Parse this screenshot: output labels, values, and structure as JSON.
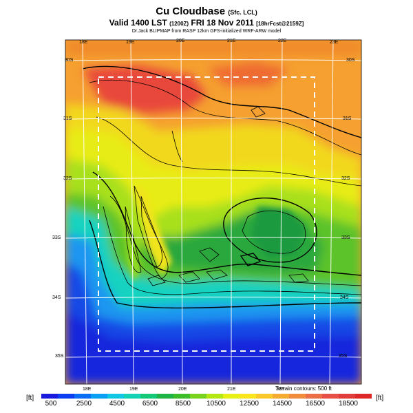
{
  "header": {
    "title": "Cu Cloudbase",
    "title_suffix": "(Sfc. LCL)",
    "valid_line": "Valid 1400 LST",
    "valid_code": "(1200Z)",
    "valid_date": "FRI 18 Nov 2011",
    "forecast_tag": "[18hrFcst@2159Z]",
    "source_line": "Dr.Jack BLIPMAP from RASP 12km GFS-initialized WRF-ARW model"
  },
  "map": {
    "lon_labels_top": [
      "18E",
      "19E",
      "20E",
      "21E",
      "22E",
      "23E"
    ],
    "lon_labels_bottom": [
      "18E",
      "19E",
      "20E",
      "21E",
      "22E"
    ],
    "lat_labels_right": [
      "30S",
      "31S",
      "32S",
      "33S",
      "34S",
      "35S"
    ],
    "lat_labels_left": [
      "30S",
      "31S",
      "32S",
      "33S",
      "34S",
      "35S"
    ],
    "terrain_note": "Terrain contours: 500 ft",
    "inner_box_style": "dashed white"
  },
  "colorbar": {
    "unit_left": "[ft]",
    "unit_right": "[ft]",
    "tick_labels": [
      "500",
      "2500",
      "4500",
      "6500",
      "8500",
      "10500",
      "12500",
      "14500",
      "16500",
      "18500"
    ],
    "colors": [
      "#1a1adc",
      "#0a3ef0",
      "#0a6ef5",
      "#0aa0f5",
      "#10c8e6",
      "#14d2b4",
      "#14c878",
      "#1eb446",
      "#3cbe28",
      "#78d21e",
      "#b4e614",
      "#e6f014",
      "#fae61e",
      "#fac828",
      "#f5aa32",
      "#f08c3c",
      "#eb6e46",
      "#e65046",
      "#e13c3c",
      "#dc2828"
    ]
  },
  "colors": {
    "ocean_deep": "#1432e0",
    "ocean_shallow": "#1ea0f0",
    "coast_cyan": "#14d2c8",
    "lowland_green": "#1eaa3c",
    "mid_green": "#7cd21e",
    "plateau_yellow": "#f0e614",
    "interior_orange": "#f59628",
    "high_red": "#e63c2d"
  }
}
